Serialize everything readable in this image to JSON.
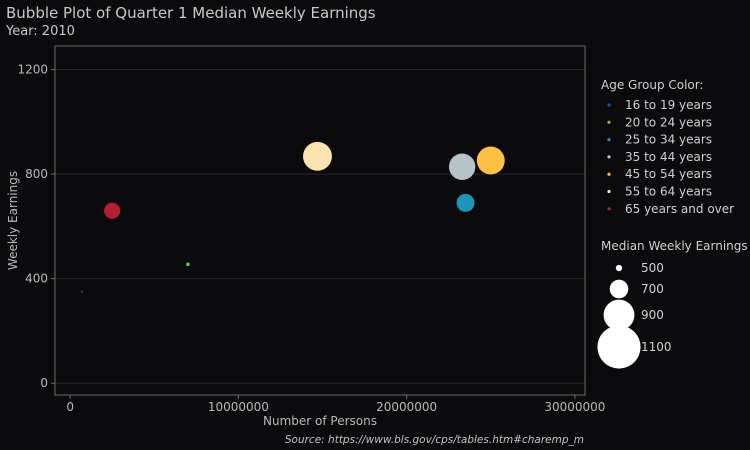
{
  "title": "Bubble Plot of Quarter 1 Median Weekly Earnings",
  "subtitle": "Year: 2010",
  "caption": "Source: https://www.bls.gov/cps/tables.htm#charemp_m",
  "colors": {
    "background": "#0b0b0e",
    "panel_border": "#6b6b6b",
    "grid": "#262626",
    "text": "#b8b8b8"
  },
  "chart_data": {
    "type": "scatter",
    "title": "Bubble Plot of Quarter 1 Median Weekly Earnings",
    "subtitle": "Year: 2010",
    "xlabel": "Number of Persons",
    "ylabel": "Weekly Earnings",
    "xlim": [
      -900000,
      30600000
    ],
    "ylim": [
      -45,
      1290
    ],
    "x_ticks": [
      0,
      10000000,
      20000000,
      30000000
    ],
    "x_tick_labels": [
      "0",
      "10000000",
      "20000000",
      "30000000"
    ],
    "y_ticks": [
      0,
      400,
      800,
      1200
    ],
    "y_tick_labels": [
      "0",
      "400",
      "800",
      "1200"
    ],
    "grid": true,
    "legend_placement": "right",
    "color_legend_title": "Age Group Color:",
    "size_legend_title": "Median Weekly Earnings",
    "size_legend": [
      500,
      700,
      900,
      1100
    ],
    "series": [
      {
        "name": "16 to 19 years",
        "color": "#1f4e9c",
        "x": 700000,
        "y": 350,
        "size": 350
      },
      {
        "name": "20 to 24 years",
        "color": "#7ec832",
        "x": 7000000,
        "y": 455,
        "size": 455
      },
      {
        "name": "25 to 34 years",
        "color": "#1b95ba",
        "x": 23500000,
        "y": 690,
        "size": 690
      },
      {
        "name": "35 to 44 years",
        "color": "#b7c3cb",
        "x": 23300000,
        "y": 828,
        "size": 828
      },
      {
        "name": "45 to 54 years",
        "color": "#ffc145",
        "x": 25000000,
        "y": 852,
        "size": 852
      },
      {
        "name": "55 to 64 years",
        "color": "#fbe3b0",
        "x": 14700000,
        "y": 868,
        "size": 868
      },
      {
        "name": "65 years and over",
        "color": "#b51d34",
        "x": 2500000,
        "y": 660,
        "size": 660
      }
    ]
  }
}
